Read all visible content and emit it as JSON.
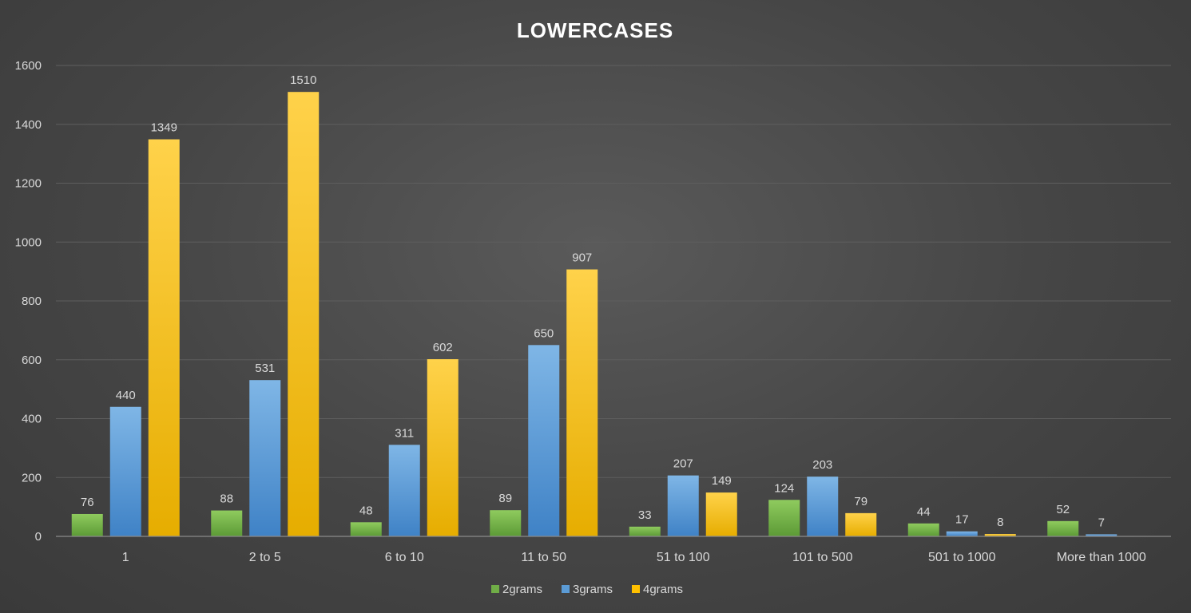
{
  "chart_data": {
    "type": "bar",
    "title": "LOWERCASES",
    "xlabel": "",
    "ylabel": "",
    "ylim": [
      0,
      1600
    ],
    "yticks": [
      0,
      200,
      400,
      600,
      800,
      1000,
      1200,
      1400,
      1600
    ],
    "grid": true,
    "legend_position": "bottom",
    "categories": [
      "1",
      "2 to 5",
      "6 to 10",
      "11 to 50",
      "51 to 100",
      "101 to 500",
      "501 to 1000",
      "More than 1000"
    ],
    "series": [
      {
        "name": "2grams",
        "color": "#70ad47",
        "values": [
          76,
          88,
          48,
          89,
          33,
          124,
          44,
          52
        ],
        "labels": [
          "76",
          "88",
          "48",
          "89",
          "33",
          "124",
          "44",
          "52"
        ]
      },
      {
        "name": "3grams",
        "color": "#5b9bd5",
        "values": [
          440,
          531,
          311,
          650,
          207,
          203,
          17,
          7
        ],
        "labels": [
          "440",
          "531",
          "311",
          "650",
          "207",
          "203",
          "17",
          "7"
        ]
      },
      {
        "name": "4grams",
        "color": "#ffc000",
        "values": [
          1349,
          1510,
          602,
          907,
          149,
          79,
          8,
          0
        ],
        "labels": [
          "1349",
          "1510",
          "602",
          "907",
          "149",
          "79",
          "8",
          ""
        ]
      }
    ]
  }
}
